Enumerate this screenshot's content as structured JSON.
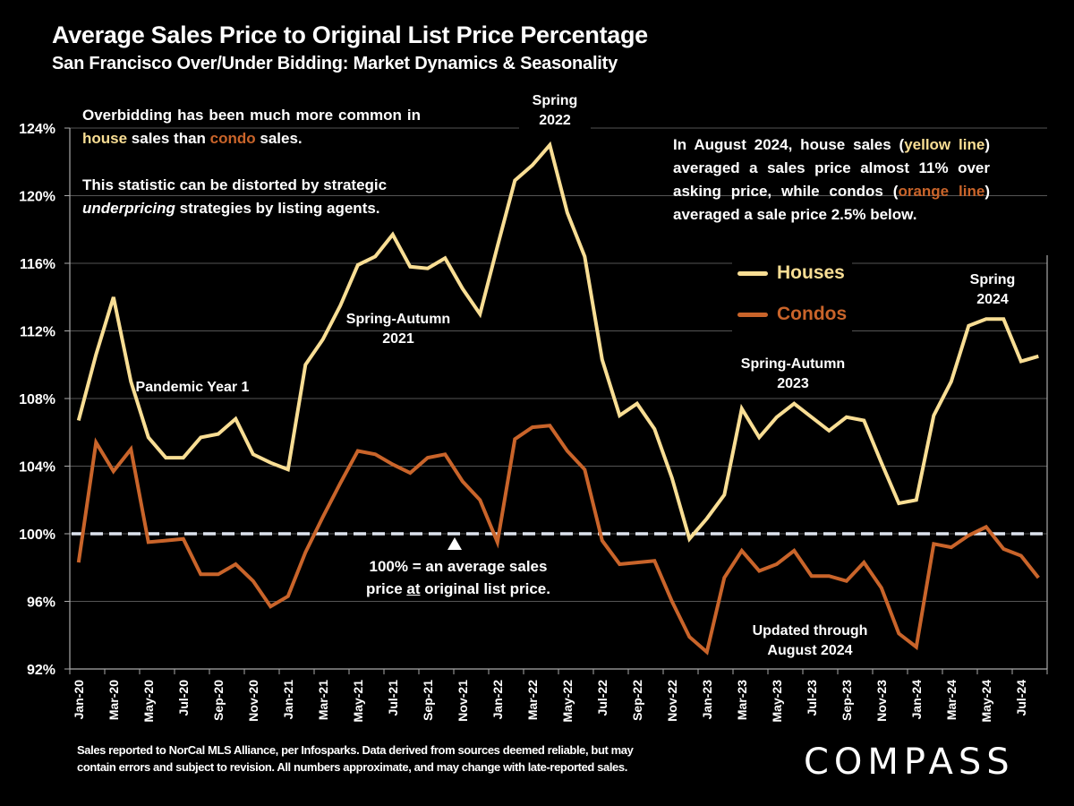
{
  "header": {
    "title": "Average Sales Price to Original List Price Percentage",
    "subtitle": "San Francisco Over/Under Bidding: Market Dynamics & Seasonality"
  },
  "annotations": {
    "left_p1_a": "Overbidding has been much more common in ",
    "left_p1_house": "house",
    "left_p1_b": " sales than ",
    "left_p1_condo": "condo",
    "left_p1_c": " sales.",
    "left_p2_a": "This statistic can be distorted by strategic ",
    "left_p2_em": "underpricing",
    "left_p2_b": " strategies by listing agents.",
    "right_a": "In August 2024, house sales (",
    "right_yellow": "yellow line",
    "right_b": ") averaged a sales price almost 11% over asking price, while condos (",
    "right_orange": "orange line",
    "right_c": ") averaged a sale price 2.5% below.",
    "spring_2022_l1": "Spring",
    "spring_2022_l2": "2022",
    "spring_autumn_2021_l1": "Spring-Autumn",
    "spring_autumn_2021_l2": "2021",
    "pandemic": "Pandemic Year 1",
    "spring_autumn_2023_l1": "Spring-Autumn",
    "spring_autumn_2023_l2": "2023",
    "spring_2024_l1": "Spring",
    "spring_2024_l2": "2024",
    "hundred_l1": "100% = an average sales",
    "hundred_l2a": "price ",
    "hundred_l2u": "at",
    "hundred_l2b": " original list price.",
    "updated_l1": "Updated through",
    "updated_l2": "August 2024"
  },
  "legend": {
    "houses": "Houses",
    "condos": "Condos"
  },
  "colors": {
    "houses": "#F9DE94",
    "condos": "#C9642A",
    "reference_line": "#DDE3EE",
    "grid": "#555555",
    "background": "#000000"
  },
  "footer": {
    "line1": "Sales reported to NorCal MLS Alliance, per Infosparks. Data derived from sources deemed reliable, but may",
    "line2": "contain errors and subject to revision. All numbers approximate, and may change with late-reported sales."
  },
  "logo": "COMPASS",
  "chart_data": {
    "type": "line",
    "title": "Average Sales Price to Original List Price Percentage",
    "subtitle": "San Francisco Over/Under Bidding: Market Dynamics & Seasonality",
    "xlabel": "",
    "ylabel": "",
    "ylim": [
      92,
      124
    ],
    "yticks": [
      92,
      96,
      100,
      104,
      108,
      112,
      116,
      120,
      124
    ],
    "ytick_labels": [
      "92%",
      "96%",
      "100%",
      "104%",
      "108%",
      "112%",
      "116%",
      "120%",
      "124%"
    ],
    "reference_line": 100,
    "grid": true,
    "legend_position": "right-center",
    "x": [
      "Jan-20",
      "Feb-20",
      "Mar-20",
      "Apr-20",
      "May-20",
      "Jun-20",
      "Jul-20",
      "Aug-20",
      "Sep-20",
      "Oct-20",
      "Nov-20",
      "Dec-20",
      "Jan-21",
      "Feb-21",
      "Mar-21",
      "Apr-21",
      "May-21",
      "Jun-21",
      "Jul-21",
      "Aug-21",
      "Sep-21",
      "Oct-21",
      "Nov-21",
      "Dec-21",
      "Jan-22",
      "Feb-22",
      "Mar-22",
      "Apr-22",
      "May-22",
      "Jun-22",
      "Jul-22",
      "Aug-22",
      "Sep-22",
      "Oct-22",
      "Nov-22",
      "Dec-22",
      "Jan-23",
      "Feb-23",
      "Mar-23",
      "Apr-23",
      "May-23",
      "Jun-23",
      "Jul-23",
      "Aug-23",
      "Sep-23",
      "Oct-23",
      "Nov-23",
      "Dec-23",
      "Jan-24",
      "Feb-24",
      "Mar-24",
      "Apr-24",
      "May-24",
      "Jun-24",
      "Jul-24",
      "Aug-24"
    ],
    "xtick_labels": [
      "Jan-20",
      "Mar-20",
      "May-20",
      "Jul-20",
      "Sep-20",
      "Nov-20",
      "Jan-21",
      "Mar-21",
      "May-21",
      "Jul-21",
      "Sep-21",
      "Nov-21",
      "Jan-22",
      "Mar-22",
      "May-22",
      "Jul-22",
      "Sep-22",
      "Nov-22",
      "Jan-23",
      "Mar-23",
      "May-23",
      "Jul-23",
      "Sep-23",
      "Nov-23",
      "Jan-24",
      "Mar-24",
      "May-24",
      "Jul-24"
    ],
    "series": [
      {
        "name": "Houses",
        "values": [
          106.7,
          110.6,
          114.0,
          109.0,
          105.7,
          104.5,
          104.5,
          105.7,
          105.9,
          106.8,
          104.7,
          104.2,
          103.8,
          110.0,
          111.5,
          113.5,
          115.9,
          116.4,
          117.7,
          115.8,
          115.7,
          116.3,
          114.5,
          113.0,
          117.0,
          120.9,
          121.8,
          123.0,
          119.0,
          116.4,
          110.3,
          107.0,
          107.7,
          106.2,
          103.3,
          99.7,
          100.9,
          102.3,
          107.4,
          105.7,
          106.9,
          107.7,
          106.9,
          106.1,
          106.9,
          106.7,
          104.2,
          101.8,
          102.0,
          107.0,
          109.0,
          112.3,
          112.7,
          112.7,
          110.2,
          110.5
        ]
      },
      {
        "name": "Condos",
        "values": [
          98.3,
          105.4,
          103.7,
          105.0,
          99.5,
          99.6,
          99.7,
          97.6,
          97.6,
          98.2,
          97.2,
          95.7,
          96.3,
          98.9,
          101.0,
          103.0,
          104.9,
          104.7,
          104.1,
          103.6,
          104.5,
          104.7,
          103.1,
          102.0,
          99.5,
          105.6,
          106.3,
          106.4,
          104.9,
          103.8,
          99.6,
          98.2,
          98.3,
          98.4,
          96.0,
          93.9,
          93.0,
          97.4,
          99.0,
          97.8,
          98.2,
          99.0,
          97.5,
          97.5,
          97.2,
          98.3,
          96.8,
          94.1,
          93.3,
          99.4,
          99.2,
          99.9,
          100.4,
          99.1,
          98.7,
          97.4
        ]
      }
    ]
  }
}
